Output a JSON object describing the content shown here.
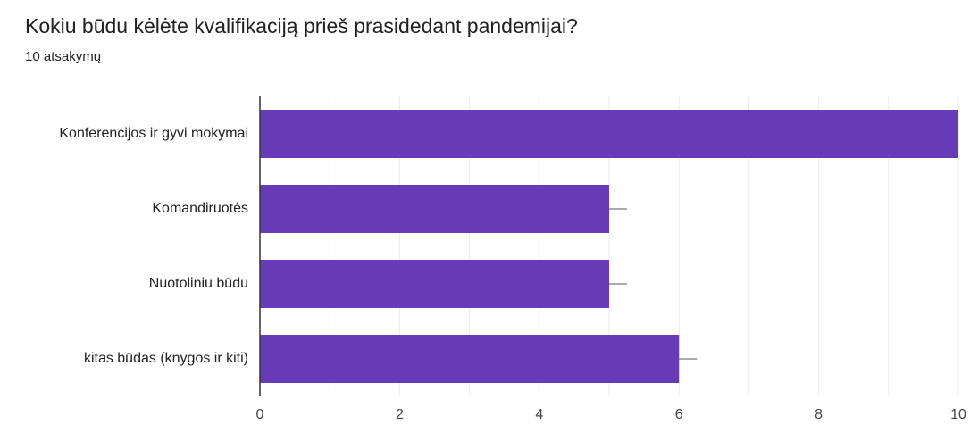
{
  "header": {
    "title": "Kokiu būdu kėlėte kvalifikaciją prieš prasidedant pandemijai?",
    "subtitle": "10 atsakymų"
  },
  "colors": {
    "bar": "#673ab7",
    "grid": "#ebebeb",
    "axis": "#333333",
    "error_bar": "#777777"
  },
  "chart_data": {
    "type": "bar",
    "orientation": "horizontal",
    "categories": [
      "Konferencijos ir gyvi mokymai",
      "Komandiruotės",
      "Nuotoliniu būdu",
      "kitas būdas (knygos ir kiti)"
    ],
    "values": [
      10,
      5,
      5,
      6
    ],
    "xlim": [
      0,
      10
    ],
    "xticks": [
      0,
      2,
      4,
      6,
      8,
      10
    ],
    "grid": true,
    "error_bars": true
  }
}
